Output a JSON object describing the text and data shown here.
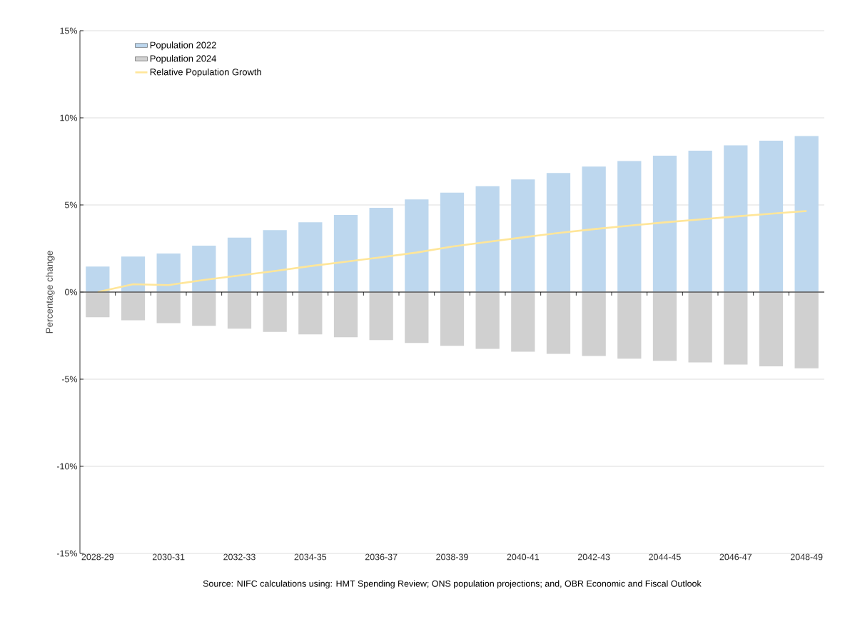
{
  "chart_data": {
    "type": "bar",
    "ylabel": "Percentage change",
    "categories": [
      "2028-29",
      null,
      "2030-31",
      null,
      "2032-33",
      null,
      "2034-35",
      null,
      "2036-37",
      null,
      "2038-39",
      null,
      "2040-41",
      null,
      "2042-43",
      null,
      "2044-45",
      null,
      "2046-47",
      null,
      "2048-49"
    ],
    "series": [
      {
        "name": "Population 2022",
        "color": "#bdd7ee",
        "values": [
          1.47,
          2.04,
          2.21,
          2.66,
          3.12,
          3.56,
          4.01,
          4.43,
          4.84,
          5.32,
          5.71,
          6.08,
          6.47,
          6.83,
          7.2,
          7.52,
          7.83,
          8.11,
          8.42,
          8.69,
          8.95
        ]
      },
      {
        "name": "Population 2024",
        "color": "#d0d0d0",
        "values": [
          -1.44,
          -1.62,
          -1.78,
          -1.94,
          -2.1,
          -2.28,
          -2.43,
          -2.59,
          -2.76,
          -2.92,
          -3.08,
          -3.26,
          -3.42,
          -3.54,
          -3.67,
          -3.82,
          -3.94,
          -4.04,
          -4.16,
          -4.26,
          -4.37
        ]
      },
      {
        "name": "Relative Population Growth",
        "type": "line",
        "color": "#ffe699",
        "values": [
          0,
          0.45,
          0.4,
          0.7,
          0.95,
          1.21,
          1.49,
          1.74,
          2.0,
          2.27,
          2.61,
          2.88,
          3.14,
          3.39,
          3.61,
          3.81,
          4.0,
          4.17,
          4.34,
          4.5,
          4.65
        ]
      }
    ],
    "ylim": [
      -15,
      15
    ],
    "yticks": [
      {
        "value": -15,
        "label": "-15%"
      },
      {
        "value": -10,
        "label": "-10%"
      },
      {
        "value": -5,
        "label": "-5%"
      },
      {
        "value": 0,
        "label": "0%"
      },
      {
        "value": 5,
        "label": "5%"
      },
      {
        "value": 10,
        "label": "10%"
      },
      {
        "value": 15,
        "label": "15%"
      }
    ],
    "stacked": true,
    "grid": "y",
    "legend": "top left",
    "marker": "none",
    "line_style": "solid",
    "annotations": [
      "Source: NIFC calculations using: HMT Spending Review; ONS population projections; and, OBR Economic and Fiscal Outlook"
    ]
  }
}
